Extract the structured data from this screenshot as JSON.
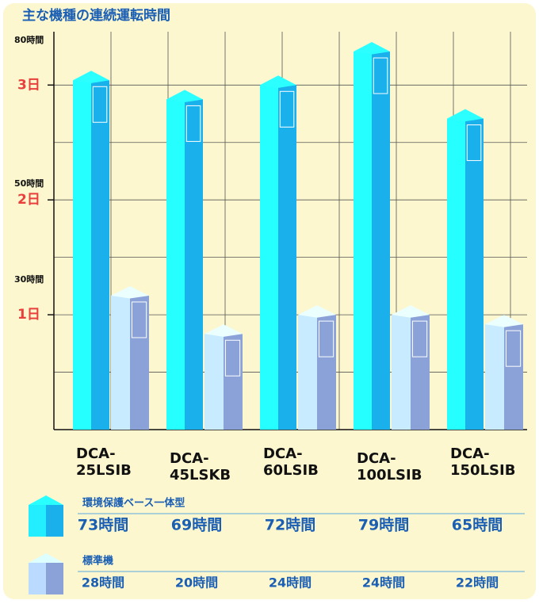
{
  "chart_data": {
    "type": "bar3d",
    "title": "主な機種の連続運転時間",
    "categories": [
      "DCA-\n25LSIB",
      "DCA-\n45LSKB",
      "DCA-\n60LSIB",
      "DCA-\n100LSIB",
      "DCA-\n150LSIB"
    ],
    "series": [
      {
        "name": "環境保護ベース一体型",
        "color": "#1ab0ec",
        "values": [
          73,
          69,
          72,
          79,
          65
        ],
        "value_labels": [
          "73時間",
          "69時間",
          "72時間",
          "79時間",
          "65時間"
        ]
      },
      {
        "name": "標準機",
        "color": "#8aa2d8",
        "values": [
          28,
          20,
          24,
          24,
          22
        ],
        "value_labels": [
          "28時間",
          "20時間",
          "24時間",
          "24時間",
          "22時間"
        ]
      }
    ],
    "ylim": [
      0,
      80
    ],
    "yticks": [
      {
        "value": 24,
        "label": "1日"
      },
      {
        "value": 48,
        "label": "2日"
      },
      {
        "value": 72,
        "label": "3日"
      }
    ],
    "hour_ticks": [
      {
        "value": 30,
        "label": "30時間"
      },
      {
        "value": 50,
        "label": "50時間"
      },
      {
        "value": 80,
        "label": "80時間"
      }
    ],
    "gridlines": [
      12,
      24,
      36,
      48,
      60,
      72
    ],
    "grid": true
  }
}
